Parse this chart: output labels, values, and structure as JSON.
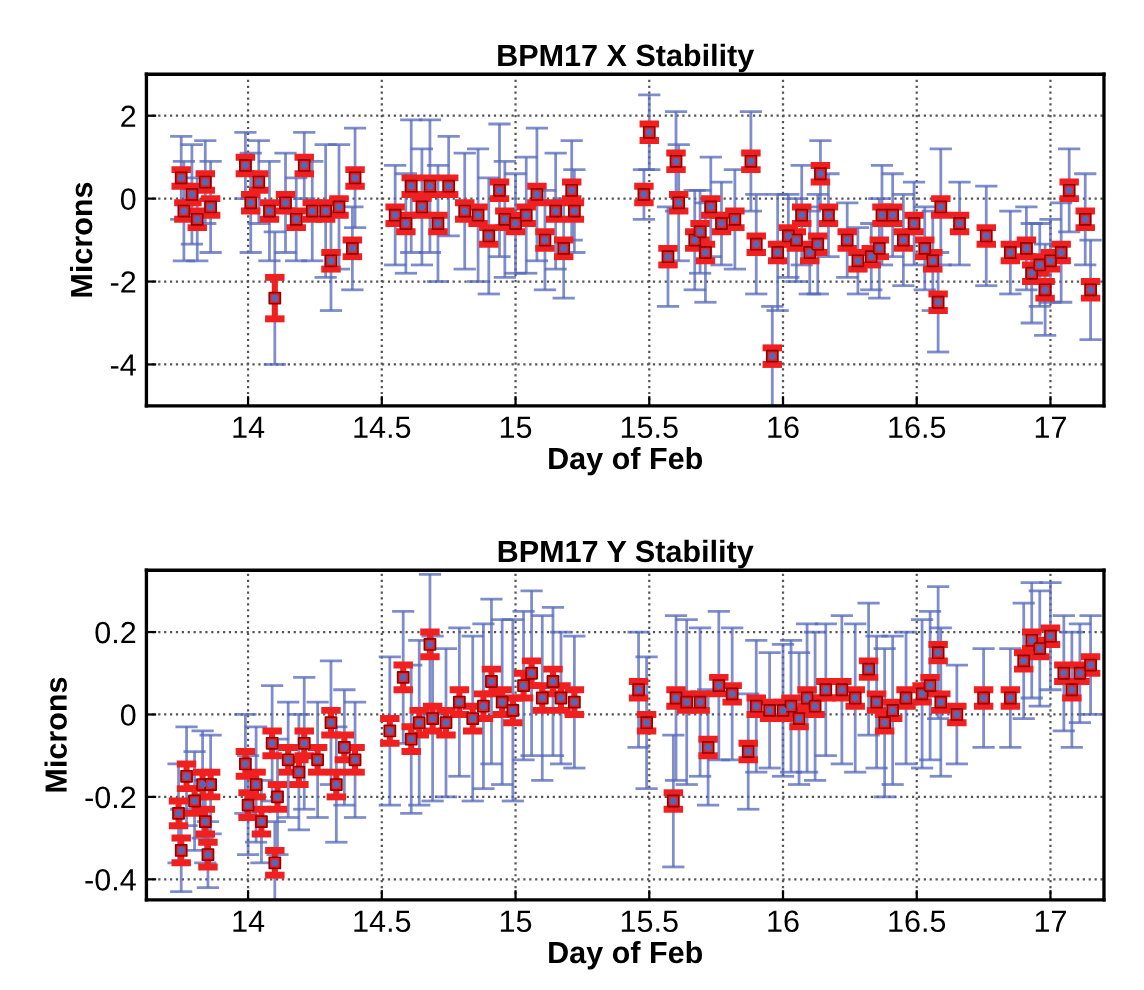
{
  "chart_data": [
    {
      "type": "scatter",
      "title": "BPM17 X Stability",
      "xlabel": "Day of Feb",
      "ylabel": "Microns",
      "xlim": [
        13.62,
        17.2
      ],
      "xticks": [
        14,
        14.5,
        15,
        15.5,
        16,
        16.5,
        17
      ],
      "ylim": [
        -5,
        3
      ],
      "yticks": [
        -4,
        -2,
        0,
        2
      ],
      "grid": true,
      "x": [
        13.75,
        13.76,
        13.79,
        13.81,
        13.84,
        13.86,
        13.99,
        14.01,
        14.04,
        14.08,
        14.1,
        14.14,
        14.18,
        14.21,
        14.24,
        14.29,
        14.31,
        14.34,
        14.39,
        14.4,
        14.55,
        14.59,
        14.61,
        14.65,
        14.68,
        14.71,
        14.75,
        14.81,
        14.86,
        14.9,
        14.94,
        14.96,
        15.0,
        15.04,
        15.08,
        15.11,
        15.15,
        15.18,
        15.21,
        15.22,
        15.48,
        15.5,
        15.57,
        15.6,
        15.61,
        15.67,
        15.69,
        15.71,
        15.73,
        15.77,
        15.82,
        15.88,
        15.9,
        15.96,
        15.98,
        16.02,
        16.05,
        16.07,
        16.1,
        16.13,
        16.14,
        16.17,
        16.24,
        16.28,
        16.33,
        16.36,
        16.37,
        16.41,
        16.45,
        16.49,
        16.53,
        16.56,
        16.58,
        16.59,
        16.66,
        16.76,
        16.85,
        16.91,
        16.93,
        16.96,
        16.98,
        17.0,
        17.04,
        17.07,
        17.13,
        17.15
      ],
      "series": [
        {
          "color": "#5468b8",
          "marker": "circle",
          "values": [
            0.5,
            -0.3,
            0.1,
            -0.5,
            0.4,
            -0.2,
            0.8,
            -0.1,
            0.4,
            -0.3,
            -2.4,
            -0.1,
            -0.5,
            0.8,
            -0.3,
            -0.3,
            -1.5,
            -0.2,
            -1.2,
            0.5,
            -0.4,
            -0.6,
            0.3,
            -0.2,
            0.3,
            -0.6,
            0.3,
            -0.3,
            -0.4,
            -0.9,
            0.2,
            -0.5,
            -0.6,
            -0.4,
            0.1,
            -1.0,
            -0.3,
            -1.2,
            0.2,
            -0.3,
            0.1,
            1.6,
            -1.4,
            0.9,
            -0.1,
            -1.0,
            -0.8,
            -1.3,
            -0.2,
            -0.6,
            -0.5,
            0.9,
            -1.1,
            -3.8,
            -1.3,
            -0.9,
            -1.0,
            -0.4,
            -1.3,
            -1.1,
            0.6,
            -0.4,
            -1.0,
            -1.5,
            -1.4,
            -1.2,
            -0.4,
            -0.4,
            -1.0,
            -0.6,
            -1.2,
            -1.5,
            -2.5,
            -0.2,
            -0.6,
            -0.9,
            -1.3,
            -1.2,
            -1.8,
            -1.6,
            -2.2,
            -1.5,
            -1.3,
            0.2,
            -0.5,
            -2.2
          ],
          "errors": [
            1.0,
            1.2,
            1.2,
            1.0,
            1.0,
            1.1,
            0.8,
            1.2,
            1.0,
            1.2,
            1.6,
            1.2,
            1.0,
            0.8,
            1.2,
            1.6,
            1.2,
            1.5,
            1.0,
            1.2,
            1.2,
            1.2,
            1.6,
            1.4,
            1.6,
            1.4,
            1.2,
            1.4,
            1.6,
            1.4,
            1.6,
            1.4,
            1.2,
            1.4,
            1.6,
            1.2,
            1.4,
            1.2,
            1.2,
            1.0,
            0.6,
            0.9,
            1.2,
            1.2,
            1.4,
            1.2,
            1.0,
            1.2,
            1.2,
            1.0,
            1.2,
            1.2,
            1.2,
            1.2,
            1.4,
            1.0,
            1.0,
            1.2,
            1.0,
            1.2,
            0.8,
            1.0,
            0.9,
            0.8,
            0.8,
            1.2,
            1.2,
            1.0,
            1.1,
            1.0,
            1.0,
            1.2,
            1.2,
            1.4,
            1.0,
            1.2,
            1.0,
            1.0,
            1.2,
            1.0,
            1.1,
            1.0,
            1.2,
            1.0,
            1.1,
            1.2
          ]
        },
        {
          "color": "#f02020",
          "marker": "square",
          "values": [
            0.5,
            -0.3,
            0.1,
            -0.5,
            0.4,
            -0.2,
            0.8,
            -0.1,
            0.4,
            -0.3,
            -2.4,
            -0.1,
            -0.5,
            0.8,
            -0.3,
            -0.3,
            -1.5,
            -0.2,
            -1.2,
            0.5,
            -0.4,
            -0.6,
            0.3,
            -0.2,
            0.3,
            -0.6,
            0.3,
            -0.3,
            -0.4,
            -0.9,
            0.2,
            -0.5,
            -0.6,
            -0.4,
            0.1,
            -1.0,
            -0.3,
            -1.2,
            0.2,
            -0.3,
            0.1,
            1.6,
            -1.4,
            0.9,
            -0.1,
            -1.0,
            -0.8,
            -1.3,
            -0.2,
            -0.6,
            -0.5,
            0.9,
            -1.1,
            -3.8,
            -1.3,
            -0.9,
            -1.0,
            -0.4,
            -1.3,
            -1.1,
            0.6,
            -0.4,
            -1.0,
            -1.5,
            -1.4,
            -1.2,
            -0.4,
            -0.4,
            -1.0,
            -0.6,
            -1.2,
            -1.5,
            -2.5,
            -0.2,
            -0.6,
            -0.9,
            -1.3,
            -1.2,
            -1.8,
            -1.6,
            -2.2,
            -1.5,
            -1.3,
            0.2,
            -0.5,
            -2.2
          ],
          "errors": [
            0.2,
            0.2,
            0.2,
            0.2,
            0.2,
            0.2,
            0.2,
            0.2,
            0.2,
            0.2,
            0.5,
            0.2,
            0.2,
            0.2,
            0.2,
            0.2,
            0.2,
            0.2,
            0.2,
            0.2,
            0.2,
            0.2,
            0.2,
            0.2,
            0.2,
            0.2,
            0.2,
            0.2,
            0.2,
            0.2,
            0.2,
            0.2,
            0.2,
            0.2,
            0.2,
            0.2,
            0.2,
            0.2,
            0.2,
            0.2,
            0.2,
            0.2,
            0.2,
            0.2,
            0.2,
            0.2,
            0.2,
            0.2,
            0.2,
            0.2,
            0.2,
            0.2,
            0.2,
            0.2,
            0.2,
            0.2,
            0.2,
            0.2,
            0.2,
            0.2,
            0.2,
            0.2,
            0.2,
            0.2,
            0.2,
            0.2,
            0.2,
            0.2,
            0.2,
            0.2,
            0.2,
            0.2,
            0.2,
            0.2,
            0.2,
            0.2,
            0.2,
            0.2,
            0.2,
            0.2,
            0.2,
            0.2,
            0.2,
            0.2,
            0.2,
            0.2
          ]
        }
      ]
    },
    {
      "type": "scatter",
      "title": "BPM17 Y Stability",
      "xlabel": "Day of Feb",
      "ylabel": "Microns",
      "xlim": [
        13.62,
        17.2
      ],
      "xticks": [
        14,
        14.5,
        15,
        15.5,
        16,
        16.5,
        17
      ],
      "ylim": [
        -0.45,
        0.35
      ],
      "yticks": [
        -0.4,
        -0.2,
        0,
        0.2
      ],
      "grid": true,
      "x": [
        13.74,
        13.75,
        13.77,
        13.8,
        13.83,
        13.84,
        13.85,
        13.86,
        13.99,
        14.0,
        14.03,
        14.05,
        14.09,
        14.1,
        14.11,
        14.15,
        14.19,
        14.21,
        14.26,
        14.31,
        14.33,
        14.36,
        14.4,
        14.53,
        14.58,
        14.61,
        14.64,
        14.68,
        14.69,
        14.74,
        14.79,
        14.84,
        14.88,
        14.91,
        14.95,
        14.99,
        15.03,
        15.06,
        15.1,
        15.14,
        15.17,
        15.22,
        15.46,
        15.49,
        15.59,
        15.6,
        15.64,
        15.69,
        15.72,
        15.76,
        15.81,
        15.87,
        15.9,
        15.95,
        16.0,
        16.03,
        16.06,
        16.09,
        16.12,
        16.16,
        16.22,
        16.27,
        16.32,
        16.35,
        16.38,
        16.41,
        16.46,
        16.52,
        16.55,
        16.58,
        16.59,
        16.65,
        16.75,
        16.85,
        16.9,
        16.93,
        16.96,
        17.0,
        17.05,
        17.08,
        17.11,
        17.15
      ],
      "series": [
        {
          "color": "#5468b8",
          "marker": "circle",
          "values": [
            -0.24,
            -0.33,
            -0.15,
            -0.21,
            -0.17,
            -0.26,
            -0.34,
            -0.17,
            -0.12,
            -0.22,
            -0.17,
            -0.26,
            -0.07,
            -0.36,
            -0.2,
            -0.11,
            -0.14,
            -0.07,
            -0.11,
            -0.02,
            -0.17,
            -0.08,
            -0.11,
            -0.04,
            0.09,
            -0.06,
            -0.02,
            0.17,
            -0.01,
            -0.02,
            0.03,
            -0.01,
            0.02,
            0.08,
            0.03,
            0.01,
            0.07,
            0.1,
            0.04,
            0.08,
            0.04,
            0.03,
            0.06,
            -0.02,
            -0.21,
            0.04,
            0.03,
            0.03,
            -0.08,
            0.07,
            0.05,
            -0.09,
            0.02,
            0.01,
            0.01,
            0.02,
            -0.01,
            0.04,
            0.02,
            0.06,
            0.06,
            0.04,
            0.11,
            0.03,
            -0.02,
            0.01,
            0.04,
            0.05,
            0.07,
            0.15,
            0.03,
            0.0,
            0.04,
            0.04,
            0.13,
            0.18,
            0.16,
            0.19,
            0.1,
            0.06,
            0.1,
            0.12
          ],
          "errors": [
            0.12,
            0.1,
            0.12,
            0.12,
            0.13,
            0.1,
            0.08,
            0.12,
            0.12,
            0.12,
            0.14,
            0.1,
            0.14,
            0.1,
            0.14,
            0.14,
            0.14,
            0.16,
            0.14,
            0.15,
            0.14,
            0.14,
            0.14,
            0.18,
            0.16,
            0.18,
            0.2,
            0.17,
            0.2,
            0.18,
            0.18,
            0.2,
            0.2,
            0.2,
            0.2,
            0.22,
            0.18,
            0.2,
            0.2,
            0.18,
            0.16,
            0.16,
            0.14,
            0.16,
            0.16,
            0.2,
            0.2,
            0.18,
            0.14,
            0.18,
            0.16,
            0.14,
            0.16,
            0.14,
            0.16,
            0.16,
            0.16,
            0.18,
            0.18,
            0.16,
            0.18,
            0.18,
            0.16,
            0.16,
            0.18,
            0.18,
            0.16,
            0.18,
            0.18,
            0.16,
            0.18,
            0.12,
            0.12,
            0.12,
            0.14,
            0.14,
            0.14,
            0.13,
            0.14,
            0.14,
            0.12,
            0.12
          ]
        },
        {
          "color": "#f02020",
          "marker": "square",
          "values": [
            -0.24,
            -0.33,
            -0.15,
            -0.21,
            -0.17,
            -0.26,
            -0.34,
            -0.17,
            -0.12,
            -0.22,
            -0.17,
            -0.26,
            -0.07,
            -0.36,
            -0.2,
            -0.11,
            -0.14,
            -0.07,
            -0.11,
            -0.02,
            -0.17,
            -0.08,
            -0.11,
            -0.04,
            0.09,
            -0.06,
            -0.02,
            0.17,
            -0.01,
            -0.02,
            0.03,
            -0.01,
            0.02,
            0.08,
            0.03,
            0.01,
            0.07,
            0.1,
            0.04,
            0.08,
            0.04,
            0.03,
            0.06,
            -0.02,
            -0.21,
            0.04,
            0.03,
            0.03,
            -0.08,
            0.07,
            0.05,
            -0.09,
            0.02,
            0.01,
            0.01,
            0.02,
            -0.01,
            0.04,
            0.02,
            0.06,
            0.06,
            0.04,
            0.11,
            0.03,
            -0.02,
            0.01,
            0.04,
            0.05,
            0.07,
            0.15,
            0.03,
            0.0,
            0.04,
            0.04,
            0.13,
            0.18,
            0.16,
            0.19,
            0.1,
            0.06,
            0.1,
            0.12
          ],
          "errors": [
            0.03,
            0.03,
            0.03,
            0.03,
            0.03,
            0.03,
            0.03,
            0.03,
            0.03,
            0.03,
            0.03,
            0.03,
            0.03,
            0.03,
            0.03,
            0.03,
            0.03,
            0.03,
            0.03,
            0.03,
            0.03,
            0.03,
            0.03,
            0.03,
            0.03,
            0.03,
            0.03,
            0.03,
            0.03,
            0.03,
            0.03,
            0.03,
            0.03,
            0.03,
            0.03,
            0.03,
            0.03,
            0.03,
            0.03,
            0.03,
            0.03,
            0.03,
            0.02,
            0.02,
            0.02,
            0.02,
            0.02,
            0.02,
            0.02,
            0.02,
            0.02,
            0.02,
            0.02,
            0.02,
            0.02,
            0.02,
            0.02,
            0.02,
            0.02,
            0.02,
            0.02,
            0.02,
            0.02,
            0.02,
            0.02,
            0.02,
            0.02,
            0.02,
            0.02,
            0.02,
            0.02,
            0.02,
            0.02,
            0.02,
            0.02,
            0.02,
            0.02,
            0.02,
            0.02,
            0.02,
            0.02,
            0.02
          ]
        }
      ]
    }
  ]
}
